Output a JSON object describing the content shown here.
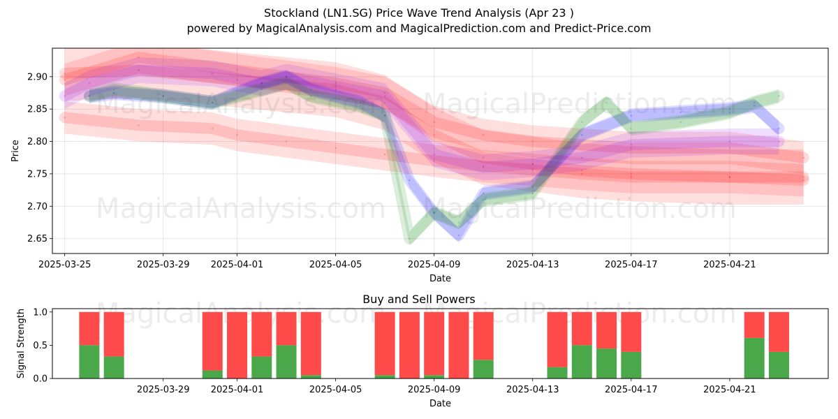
{
  "header": {
    "title": "Stockland (LN1.SG) Price Wave Trend Analysis (Apr 23 )",
    "subtitle": "powered by MagicalAnalysis.com and MagicalPrediction.com and Predict-Price.com"
  },
  "watermarks": [
    "MagicalAnalysis.com",
    "MagicalPrediction.com"
  ],
  "chart_data": [
    {
      "type": "line",
      "title": "",
      "xlabel": "Date",
      "ylabel": "Price",
      "xlim": [
        "2025-03-24T12:00",
        "2025-04-25T00:00"
      ],
      "ylim": [
        2.627,
        2.944
      ],
      "x_ticks": [
        "2025-03-25",
        "2025-03-29",
        "2025-04-01",
        "2025-04-05",
        "2025-04-09",
        "2025-04-13",
        "2025-04-17",
        "2025-04-21"
      ],
      "y_ticks": [
        2.65,
        2.7,
        2.75,
        2.8,
        2.85,
        2.9
      ],
      "grid": true,
      "series": [
        {
          "color": "#ff0000",
          "band": 0.05,
          "x": [
            "2025-03-25",
            "2025-03-28",
            "2025-03-31",
            "2025-04-01",
            "2025-04-03",
            "2025-04-05",
            "2025-04-07",
            "2025-04-09",
            "2025-04-11",
            "2025-04-13",
            "2025-04-15",
            "2025-04-17",
            "2025-04-21",
            "2025-04-24"
          ],
          "y": [
            2.837,
            2.825,
            2.82,
            2.81,
            2.8,
            2.79,
            2.78,
            2.77,
            2.762,
            2.756,
            2.75,
            2.745,
            2.745,
            2.74
          ]
        },
        {
          "color": "#ff0000",
          "band": 0.085,
          "x": [
            "2025-03-25",
            "2025-03-28",
            "2025-04-01",
            "2025-04-05",
            "2025-04-07",
            "2025-04-09",
            "2025-04-11",
            "2025-04-13",
            "2025-04-15",
            "2025-04-17",
            "2025-04-21",
            "2025-04-24"
          ],
          "y": [
            2.905,
            2.91,
            2.895,
            2.88,
            2.86,
            2.81,
            2.775,
            2.765,
            2.755,
            2.75,
            2.745,
            2.745
          ]
        },
        {
          "color": "#ff0000",
          "band": 0.05,
          "x": [
            "2025-03-25",
            "2025-03-28",
            "2025-04-01",
            "2025-04-05",
            "2025-04-07",
            "2025-04-09",
            "2025-04-11",
            "2025-04-13",
            "2025-04-17",
            "2025-04-21",
            "2025-04-24"
          ],
          "y": [
            2.895,
            2.93,
            2.91,
            2.89,
            2.875,
            2.83,
            2.81,
            2.8,
            2.79,
            2.79,
            2.775
          ]
        },
        {
          "color": "#0000ff",
          "band": 0.022,
          "x": [
            "2025-03-26",
            "2025-03-27",
            "2025-03-29",
            "2025-03-31",
            "2025-04-02",
            "2025-04-03",
            "2025-04-04",
            "2025-04-06",
            "2025-04-07",
            "2025-04-08",
            "2025-04-09",
            "2025-04-10",
            "2025-04-11",
            "2025-04-13",
            "2025-04-15",
            "2025-04-17",
            "2025-04-19",
            "2025-04-21",
            "2025-04-22",
            "2025-04-23"
          ],
          "y": [
            2.87,
            2.875,
            2.87,
            2.86,
            2.89,
            2.9,
            2.88,
            2.86,
            2.84,
            2.74,
            2.69,
            2.655,
            2.72,
            2.73,
            2.81,
            2.84,
            2.845,
            2.85,
            2.855,
            2.82
          ]
        },
        {
          "color": "#008000",
          "band": 0.022,
          "x": [
            "2025-03-26",
            "2025-03-27",
            "2025-03-29",
            "2025-03-31",
            "2025-04-02",
            "2025-04-03",
            "2025-04-04",
            "2025-04-06",
            "2025-04-07",
            "2025-04-08",
            "2025-04-09",
            "2025-04-10",
            "2025-04-11",
            "2025-04-13",
            "2025-04-15",
            "2025-04-16",
            "2025-04-17",
            "2025-04-19",
            "2025-04-21",
            "2025-04-22",
            "2025-04-23"
          ],
          "y": [
            2.87,
            2.88,
            2.87,
            2.86,
            2.88,
            2.89,
            2.87,
            2.855,
            2.84,
            2.65,
            2.69,
            2.675,
            2.71,
            2.72,
            2.83,
            2.86,
            2.82,
            2.83,
            2.845,
            2.86,
            2.87
          ]
        },
        {
          "color": "#8000ff",
          "band": 0.04,
          "x": [
            "2025-03-25",
            "2025-03-26",
            "2025-03-28",
            "2025-03-31",
            "2025-04-02",
            "2025-04-03",
            "2025-04-05",
            "2025-04-07",
            "2025-04-09",
            "2025-04-11",
            "2025-04-13",
            "2025-04-15",
            "2025-04-17",
            "2025-04-21",
            "2025-04-23"
          ],
          "y": [
            2.87,
            2.89,
            2.91,
            2.905,
            2.89,
            2.9,
            2.885,
            2.87,
            2.78,
            2.76,
            2.765,
            2.775,
            2.795,
            2.8,
            2.8
          ]
        }
      ]
    },
    {
      "type": "bar",
      "title": "Buy and Sell Powers",
      "xlabel": "Date",
      "ylabel": "Signal Strength",
      "ylim": [
        0,
        1.05
      ],
      "y_ticks": [
        0.0,
        0.5,
        1.0
      ],
      "x_ticks": [
        "2025-03-29",
        "2025-04-01",
        "2025-04-05",
        "2025-04-09",
        "2025-04-13",
        "2025-04-17",
        "2025-04-21"
      ],
      "stack_total": 1.0,
      "series": [
        {
          "name": "buy",
          "color": "#4aa84a"
        },
        {
          "name": "sell",
          "color": "#ff4a4a"
        }
      ],
      "dates": [
        "2025-03-26",
        "2025-03-27",
        "2025-03-31",
        "2025-04-01",
        "2025-04-02",
        "2025-04-03",
        "2025-04-04",
        "2025-04-07",
        "2025-04-08",
        "2025-04-09",
        "2025-04-10",
        "2025-04-11",
        "2025-04-14",
        "2025-04-15",
        "2025-04-16",
        "2025-04-17",
        "2025-04-22",
        "2025-04-23"
      ],
      "buy": [
        0.5,
        0.33,
        0.12,
        0.0,
        0.33,
        0.5,
        0.05,
        0.05,
        0.0,
        0.05,
        0.0,
        0.28,
        0.17,
        0.5,
        0.45,
        0.4,
        0.61,
        0.4
      ]
    }
  ]
}
